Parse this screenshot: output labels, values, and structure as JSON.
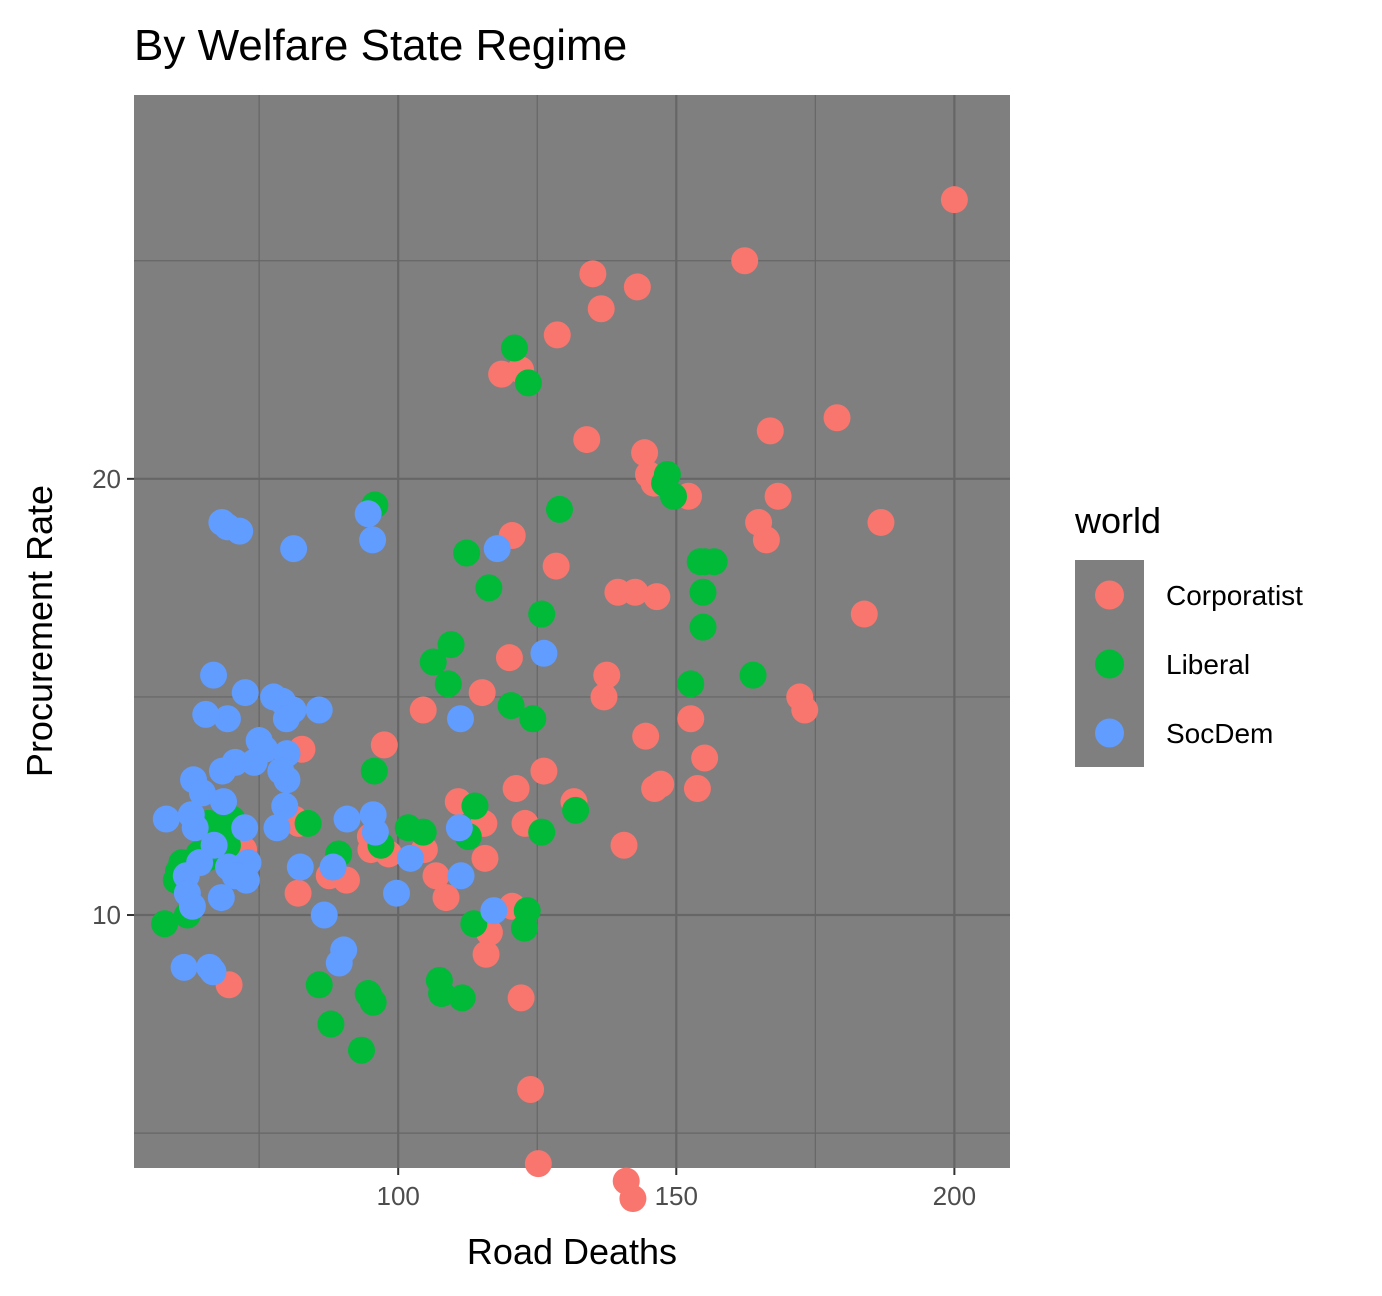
{
  "chart_data": {
    "type": "scatter",
    "title": "By Welfare State Regime",
    "xlabel": "Road Deaths",
    "ylabel": "Procurement Rate",
    "xlim": [
      52.5,
      210
    ],
    "ylim": [
      4.2,
      28.8
    ],
    "x_ticks": [
      {
        "value": 100,
        "label": "100"
      },
      {
        "value": 150,
        "label": "150"
      },
      {
        "value": 200,
        "label": "200"
      }
    ],
    "y_ticks": [
      {
        "value": 10,
        "label": "10"
      },
      {
        "value": 20,
        "label": "20"
      }
    ],
    "x_minor": [
      75,
      125,
      175
    ],
    "y_minor": [
      5,
      15,
      25
    ],
    "grid": true,
    "legend": {
      "title": "world",
      "placement": "right"
    },
    "panel_color": "#7f7f7f",
    "grid_color": "#666666",
    "series": [
      {
        "name": "Corporatist",
        "color": "#F8766D",
        "points": [
          [
            200.0,
            26.4
          ],
          [
            162.3,
            25.0
          ],
          [
            135.0,
            24.7
          ],
          [
            143.0,
            24.4
          ],
          [
            136.5,
            23.9
          ],
          [
            128.6,
            23.3
          ],
          [
            118.6,
            22.4
          ],
          [
            122.0,
            22.5
          ],
          [
            178.9,
            21.4
          ],
          [
            166.9,
            21.1
          ],
          [
            133.9,
            20.9
          ],
          [
            144.3,
            20.6
          ],
          [
            145.0,
            20.1
          ],
          [
            146.0,
            19.9
          ],
          [
            152.2,
            19.6
          ],
          [
            168.3,
            19.6
          ],
          [
            186.8,
            19.0
          ],
          [
            164.8,
            19.0
          ],
          [
            166.2,
            18.6
          ],
          [
            120.5,
            18.7
          ],
          [
            128.4,
            18.0
          ],
          [
            139.5,
            17.4
          ],
          [
            142.6,
            17.4
          ],
          [
            146.5,
            17.3
          ],
          [
            183.8,
            16.9
          ],
          [
            120.0,
            15.9
          ],
          [
            137.5,
            15.5
          ],
          [
            115.1,
            15.1
          ],
          [
            137.0,
            15.0
          ],
          [
            172.2,
            15.0
          ],
          [
            173.1,
            14.7
          ],
          [
            104.5,
            14.7
          ],
          [
            152.6,
            14.5
          ],
          [
            144.5,
            14.1
          ],
          [
            97.5,
            13.9
          ],
          [
            82.7,
            13.8
          ],
          [
            155.1,
            13.6
          ],
          [
            126.2,
            13.3
          ],
          [
            146.1,
            12.9
          ],
          [
            147.2,
            13.0
          ],
          [
            153.8,
            12.9
          ],
          [
            121.2,
            12.9
          ],
          [
            110.8,
            12.6
          ],
          [
            131.6,
            12.6
          ],
          [
            81.3,
            12.2
          ],
          [
            82.1,
            12.1
          ],
          [
            122.8,
            12.1
          ],
          [
            115.4,
            12.1
          ],
          [
            95.0,
            11.8
          ],
          [
            72.2,
            11.5
          ],
          [
            95.1,
            11.5
          ],
          [
            104.7,
            11.5
          ],
          [
            98.3,
            11.4
          ],
          [
            140.6,
            11.6
          ],
          [
            115.6,
            11.3
          ],
          [
            87.6,
            10.9
          ],
          [
            106.8,
            10.9
          ],
          [
            82.0,
            10.5
          ],
          [
            120.5,
            10.2
          ],
          [
            90.7,
            10.8
          ],
          [
            108.6,
            10.4
          ],
          [
            116.4,
            9.6
          ],
          [
            115.8,
            9.1
          ],
          [
            69.6,
            8.4
          ],
          [
            122.1,
            8.1
          ],
          [
            123.8,
            6.0
          ],
          [
            125.2,
            4.3
          ],
          [
            141.0,
            3.9
          ],
          [
            142.2,
            3.5
          ]
        ]
      },
      {
        "name": "Liberal",
        "color": "#00BA38",
        "points": [
          [
            120.9,
            23.0
          ],
          [
            123.4,
            22.2
          ],
          [
            148.4,
            20.1
          ],
          [
            147.9,
            19.9
          ],
          [
            149.5,
            19.6
          ],
          [
            95.8,
            19.4
          ],
          [
            129.0,
            19.3
          ],
          [
            112.3,
            18.3
          ],
          [
            155.1,
            18.1
          ],
          [
            156.8,
            18.1
          ],
          [
            154.3,
            18.1
          ],
          [
            116.3,
            17.5
          ],
          [
            154.8,
            17.4
          ],
          [
            125.8,
            16.9
          ],
          [
            109.5,
            16.2
          ],
          [
            106.3,
            15.8
          ],
          [
            154.8,
            16.6
          ],
          [
            109.0,
            15.3
          ],
          [
            152.6,
            15.3
          ],
          [
            163.8,
            15.5
          ],
          [
            120.3,
            14.8
          ],
          [
            124.2,
            14.5
          ],
          [
            95.7,
            13.3
          ],
          [
            113.8,
            12.5
          ],
          [
            131.9,
            12.4
          ],
          [
            70.1,
            12.2
          ],
          [
            65.9,
            12.1
          ],
          [
            83.8,
            12.1
          ],
          [
            101.8,
            12.0
          ],
          [
            104.5,
            11.9
          ],
          [
            67.6,
            11.9
          ],
          [
            112.6,
            11.8
          ],
          [
            125.8,
            11.9
          ],
          [
            69.3,
            11.6
          ],
          [
            96.9,
            11.6
          ],
          [
            64.2,
            11.4
          ],
          [
            89.3,
            11.4
          ],
          [
            65.5,
            11.3
          ],
          [
            61.1,
            11.2
          ],
          [
            60.5,
            11.0
          ],
          [
            60.1,
            10.8
          ],
          [
            123.2,
            10.1
          ],
          [
            62.1,
            10.0
          ],
          [
            113.6,
            9.8
          ],
          [
            122.7,
            9.7
          ],
          [
            58.0,
            9.8
          ],
          [
            85.8,
            8.4
          ],
          [
            94.6,
            8.2
          ],
          [
            95.5,
            8.0
          ],
          [
            107.4,
            8.5
          ],
          [
            111.5,
            8.1
          ],
          [
            107.8,
            8.2
          ],
          [
            87.9,
            7.5
          ],
          [
            93.4,
            6.9
          ]
        ]
      },
      {
        "name": "SocDem",
        "color": "#619CFF",
        "points": [
          [
            94.6,
            19.2
          ],
          [
            68.3,
            19.0
          ],
          [
            69.3,
            18.9
          ],
          [
            71.5,
            18.8
          ],
          [
            95.4,
            18.6
          ],
          [
            81.2,
            18.4
          ],
          [
            117.8,
            18.4
          ],
          [
            126.2,
            16.0
          ],
          [
            66.8,
            15.5
          ],
          [
            72.5,
            15.1
          ],
          [
            77.6,
            15.0
          ],
          [
            79.2,
            14.9
          ],
          [
            81.1,
            14.7
          ],
          [
            85.8,
            14.7
          ],
          [
            79.9,
            14.5
          ],
          [
            75.0,
            14.0
          ],
          [
            69.3,
            14.5
          ],
          [
            111.2,
            14.5
          ],
          [
            65.4,
            14.6
          ],
          [
            76.0,
            13.8
          ],
          [
            80.0,
            13.7
          ],
          [
            74.1,
            13.5
          ],
          [
            70.7,
            13.5
          ],
          [
            68.4,
            13.3
          ],
          [
            63.2,
            13.1
          ],
          [
            78.9,
            13.3
          ],
          [
            80.0,
            13.1
          ],
          [
            64.8,
            12.8
          ],
          [
            68.6,
            12.6
          ],
          [
            58.3,
            12.2
          ],
          [
            62.8,
            12.3
          ],
          [
            63.5,
            12.0
          ],
          [
            95.5,
            12.3
          ],
          [
            79.6,
            12.5
          ],
          [
            111.0,
            12.0
          ],
          [
            90.8,
            12.2
          ],
          [
            64.3,
            11.2
          ],
          [
            72.4,
            12.0
          ],
          [
            95.9,
            11.9
          ],
          [
            78.2,
            12.0
          ],
          [
            66.9,
            11.6
          ],
          [
            102.2,
            11.3
          ],
          [
            73.0,
            11.2
          ],
          [
            69.5,
            11.1
          ],
          [
            70.7,
            10.9
          ],
          [
            88.3,
            11.1
          ],
          [
            61.9,
            10.9
          ],
          [
            82.4,
            11.1
          ],
          [
            111.3,
            10.9
          ],
          [
            62.1,
            10.5
          ],
          [
            72.7,
            10.8
          ],
          [
            63.0,
            10.2
          ],
          [
            68.2,
            10.4
          ],
          [
            99.7,
            10.5
          ],
          [
            117.2,
            10.1
          ],
          [
            86.7,
            10.0
          ],
          [
            90.2,
            9.2
          ],
          [
            89.4,
            8.9
          ],
          [
            61.5,
            8.8
          ],
          [
            66.1,
            8.8
          ],
          [
            66.7,
            8.7
          ]
        ]
      }
    ]
  }
}
